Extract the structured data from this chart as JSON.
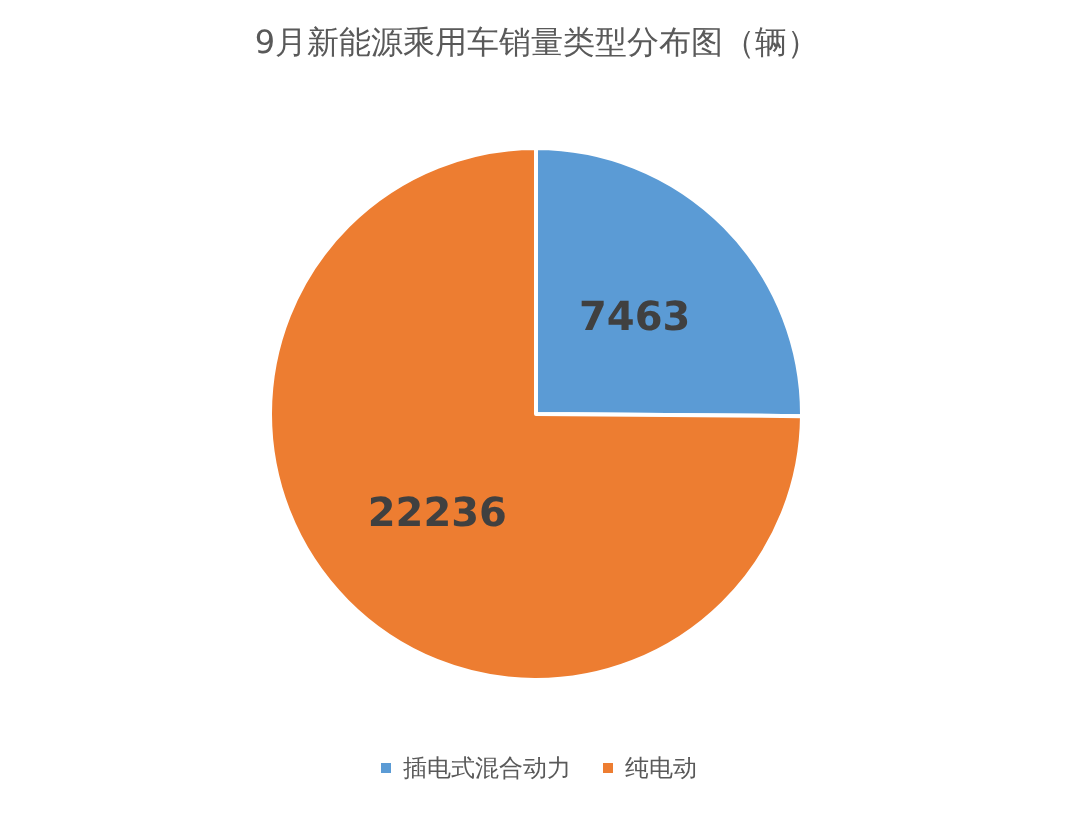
{
  "chart_data": {
    "type": "pie",
    "title": "9月新能源乘用车销量类型分布图（辆）",
    "categories": [
      "插电式混合动力",
      "纯电动"
    ],
    "values": [
      7463,
      22236
    ],
    "colors": [
      "#5b9bd5",
      "#ed7d31"
    ],
    "data_labels": true,
    "legend": "bottom"
  }
}
